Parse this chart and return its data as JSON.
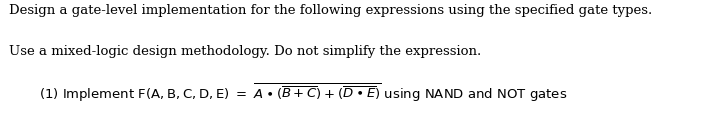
{
  "line1": "Design a gate-level implementation for the following expressions using the specified gate types.",
  "line2": "Use a mixed-logic design methodology. Do not simplify the expression.",
  "bg_color": "#ffffff",
  "text_color": "#000000",
  "font_size_body": 9.5,
  "font_size_eq": 9.5,
  "fig_width": 7.11,
  "fig_height": 1.19,
  "dpi": 100
}
